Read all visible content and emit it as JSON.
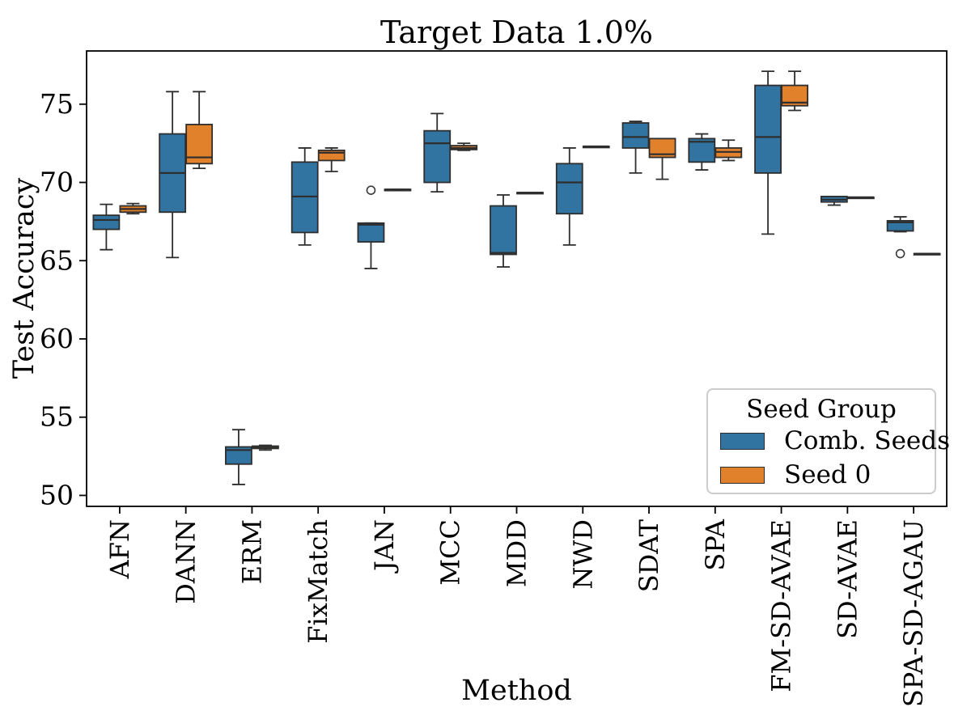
{
  "chart_data": {
    "type": "boxplot",
    "title": "Target Data 1.0%",
    "xlabel": "Method",
    "ylabel": "Test Accuracy",
    "ylim": [
      49.3,
      78.4
    ],
    "yticks": [
      50,
      55,
      60,
      65,
      70,
      75
    ],
    "grid": false,
    "categories": [
      "AFN",
      "DANN",
      "ERM",
      "FixMatch",
      "JAN",
      "MCC",
      "MDD",
      "NWD",
      "SDAT",
      "SPA",
      "FM-SD-AVAE",
      "SD-AVAE",
      "SPA-SD-AGAU"
    ],
    "legend": {
      "title": "Seed Group",
      "position": "lower right",
      "entries": [
        {
          "label": "Comb. Seeds",
          "color": "#3274a1"
        },
        {
          "label": "Seed 0",
          "color": "#e1812c"
        }
      ]
    },
    "series": [
      {
        "name": "Comb. Seeds",
        "color": "#3274a1",
        "boxes": [
          {
            "whislo": 65.7,
            "q1": 67.0,
            "med": 67.6,
            "q3": 67.9,
            "whishi": 68.6,
            "outliers": []
          },
          {
            "whislo": 65.2,
            "q1": 68.1,
            "med": 70.6,
            "q3": 73.1,
            "whishi": 75.8,
            "outliers": []
          },
          {
            "whislo": 50.7,
            "q1": 52.0,
            "med": 52.9,
            "q3": 53.1,
            "whishi": 54.2,
            "outliers": []
          },
          {
            "whislo": 66.0,
            "q1": 66.8,
            "med": 69.1,
            "q3": 71.3,
            "whishi": 72.2,
            "outliers": []
          },
          {
            "whislo": 64.5,
            "q1": 66.2,
            "med": 67.3,
            "q3": 67.4,
            "whishi": 67.4,
            "outliers": [
              69.5
            ]
          },
          {
            "whislo": 69.4,
            "q1": 70.0,
            "med": 72.5,
            "q3": 73.3,
            "whishi": 74.4,
            "outliers": []
          },
          {
            "whislo": 64.6,
            "q1": 65.4,
            "med": 65.5,
            "q3": 68.5,
            "whishi": 69.2,
            "outliers": []
          },
          {
            "whislo": 66.0,
            "q1": 68.0,
            "med": 70.0,
            "q3": 71.2,
            "whishi": 72.2,
            "outliers": []
          },
          {
            "whislo": 70.6,
            "q1": 72.2,
            "med": 72.9,
            "q3": 73.8,
            "whishi": 73.9,
            "outliers": []
          },
          {
            "whislo": 70.8,
            "q1": 71.3,
            "med": 72.6,
            "q3": 72.8,
            "whishi": 73.1,
            "outliers": []
          },
          {
            "whislo": 66.7,
            "q1": 70.6,
            "med": 72.9,
            "q3": 76.2,
            "whishi": 77.1,
            "outliers": []
          },
          {
            "whislo": 68.55,
            "q1": 68.75,
            "med": 68.9,
            "q3": 69.1,
            "whishi": 69.1,
            "outliers": []
          },
          {
            "whislo": 66.85,
            "q1": 66.9,
            "med": 67.45,
            "q3": 67.55,
            "whishi": 67.8,
            "outliers": [
              65.45
            ]
          }
        ]
      },
      {
        "name": "Seed 0",
        "color": "#e1812c",
        "boxes": [
          {
            "whislo": 68.0,
            "q1": 68.1,
            "med": 68.3,
            "q3": 68.5,
            "whishi": 68.65,
            "outliers": []
          },
          {
            "whislo": 70.9,
            "q1": 71.2,
            "med": 71.6,
            "q3": 73.7,
            "whishi": 75.8,
            "outliers": []
          },
          {
            "whislo": 52.9,
            "q1": 53.0,
            "med": 53.05,
            "q3": 53.15,
            "whishi": 53.2,
            "outliers": []
          },
          {
            "whislo": 70.7,
            "q1": 71.4,
            "med": 71.9,
            "q3": 72.05,
            "whishi": 72.2,
            "outliers": []
          },
          {
            "whislo": 69.55,
            "q1": 69.55,
            "med": 69.55,
            "q3": 69.55,
            "whishi": 69.55,
            "outliers": []
          },
          {
            "whislo": 72.05,
            "q1": 72.1,
            "med": 72.2,
            "q3": 72.35,
            "whishi": 72.5,
            "outliers": []
          },
          {
            "whislo": 69.35,
            "q1": 69.35,
            "med": 69.35,
            "q3": 69.35,
            "whishi": 69.35,
            "outliers": []
          },
          {
            "whislo": 72.3,
            "q1": 72.3,
            "med": 72.3,
            "q3": 72.3,
            "whishi": 72.3,
            "outliers": []
          },
          {
            "whislo": 70.2,
            "q1": 71.6,
            "med": 71.8,
            "q3": 72.8,
            "whishi": 72.8,
            "outliers": []
          },
          {
            "whislo": 71.4,
            "q1": 71.6,
            "med": 71.95,
            "q3": 72.2,
            "whishi": 72.7,
            "outliers": []
          },
          {
            "whislo": 74.6,
            "q1": 74.9,
            "med": 75.1,
            "q3": 76.2,
            "whishi": 77.1,
            "outliers": []
          },
          {
            "whislo": 69.05,
            "q1": 69.05,
            "med": 69.05,
            "q3": 69.05,
            "whishi": 69.05,
            "outliers": []
          },
          {
            "whislo": 65.45,
            "q1": 65.45,
            "med": 65.45,
            "q3": 65.45,
            "whishi": 65.45,
            "outliers": []
          }
        ]
      }
    ]
  }
}
